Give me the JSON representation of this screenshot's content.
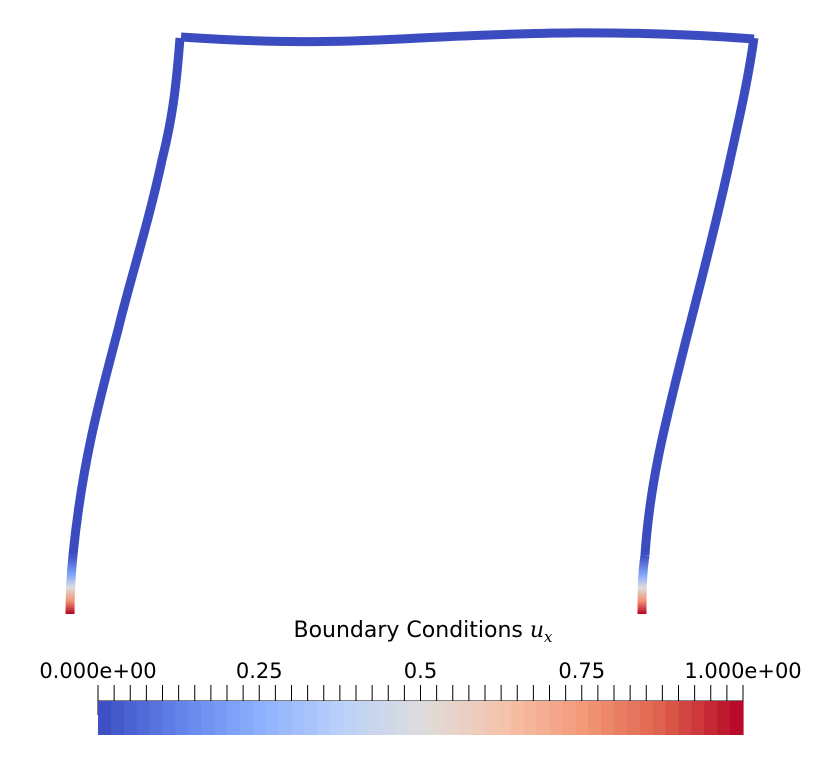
{
  "colorbar": {
    "title": "Boundary Conditions",
    "title_variable": "u",
    "title_subscript": "x",
    "range": [
      0,
      1
    ],
    "segments": 50,
    "labels": [
      {
        "value": 0.0,
        "text": "0.000e+00"
      },
      {
        "value": 0.25,
        "text": "0.25"
      },
      {
        "value": 0.5,
        "text": "0.5"
      },
      {
        "value": 0.75,
        "text": "0.75"
      },
      {
        "value": 1.0,
        "text": "1.000e+00"
      }
    ],
    "colors": {
      "low": "#3b4cc0",
      "mid": "#dddddd",
      "high": "#b40426"
    }
  },
  "frame": {
    "color_map_values": {
      "beam_and_columns": 0.0,
      "column_base": "0 to 1 gradient near supports"
    }
  }
}
